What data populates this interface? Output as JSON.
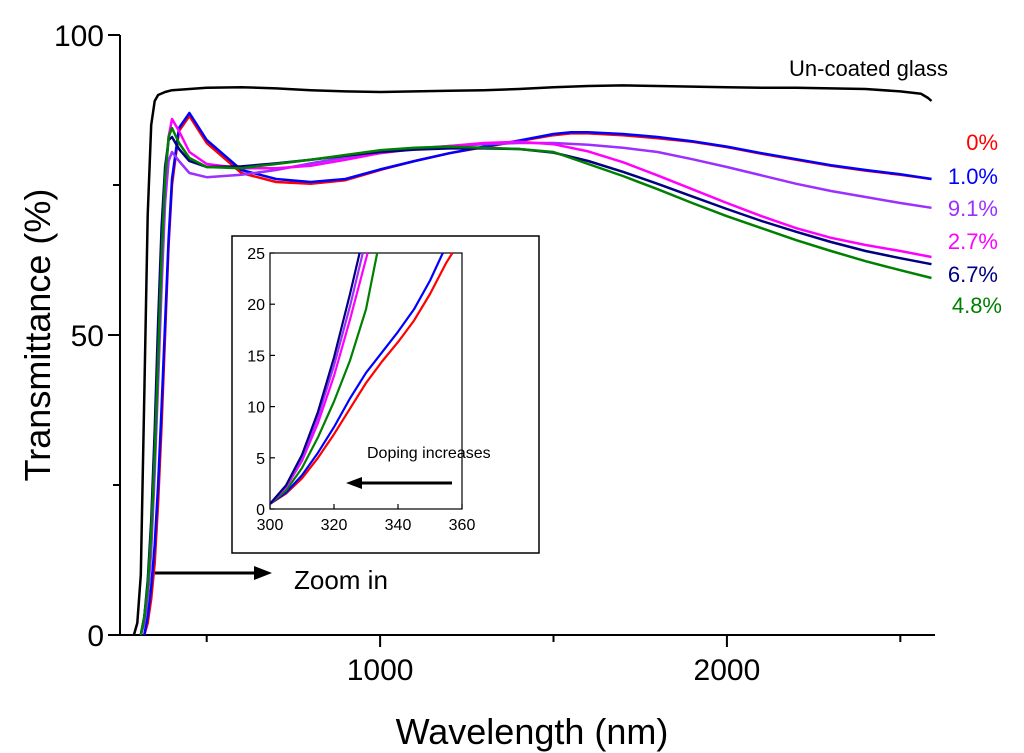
{
  "chart_data": [
    {
      "type": "line",
      "xlabel": "Wavelength (nm)",
      "ylabel": "Transmittance (%)",
      "xlim": [
        250,
        2600
      ],
      "ylim": [
        0,
        100
      ],
      "x_ticks": [
        1000,
        2000
      ],
      "x_tick_labels": [
        "1000",
        "2000"
      ],
      "x_minor_ticks": [
        500,
        1500,
        2500
      ],
      "y_ticks": [
        0,
        50,
        100
      ],
      "y_tick_labels": [
        "0",
        "50",
        "100"
      ],
      "y_minor_ticks": [
        25,
        75
      ],
      "grid": false,
      "legend": "labels at right end of each curve",
      "annotations": [
        {
          "text": "Zoom in",
          "arrow": "points right",
          "color": "#000000"
        }
      ],
      "series": [
        {
          "name": "Un-coated glass",
          "color": "#000000",
          "x": [
            290,
            300,
            310,
            320,
            330,
            340,
            350,
            360,
            380,
            400,
            450,
            500,
            600,
            700,
            800,
            900,
            1000,
            1100,
            1200,
            1300,
            1400,
            1500,
            1600,
            1700,
            1800,
            1900,
            2000,
            2100,
            2200,
            2300,
            2400,
            2500,
            2560,
            2580,
            2590
          ],
          "y": [
            0,
            2,
            10,
            40,
            70,
            85,
            89,
            90,
            90.5,
            90.8,
            91,
            91.2,
            91.3,
            91.1,
            90.8,
            90.6,
            90.5,
            90.6,
            90.7,
            90.8,
            91,
            91.3,
            91.5,
            91.6,
            91.5,
            91.4,
            91.3,
            91.2,
            91.2,
            91.1,
            91,
            90.6,
            90.2,
            89.5,
            89
          ]
        },
        {
          "name": "0%",
          "color": "#ff0000",
          "x": [
            320,
            330,
            340,
            350,
            360,
            370,
            380,
            390,
            400,
            420,
            450,
            500,
            600,
            700,
            800,
            900,
            1000,
            1100,
            1200,
            1300,
            1400,
            1500,
            1550,
            1600,
            1700,
            1800,
            1900,
            2000,
            2100,
            2200,
            2300,
            2400,
            2500,
            2590
          ],
          "y": [
            0,
            2,
            6,
            12,
            22,
            35,
            50,
            65,
            75,
            84,
            86.5,
            82,
            77,
            75.5,
            75.2,
            75.8,
            77.5,
            79,
            80.3,
            81.3,
            82.3,
            83.3,
            83.6,
            83.6,
            83.3,
            82.8,
            82.2,
            81.3,
            80.2,
            79.2,
            78.2,
            77.4,
            76.7,
            76
          ]
        },
        {
          "name": "1.0%",
          "color": "#0000ff",
          "x": [
            320,
            330,
            340,
            350,
            360,
            370,
            380,
            390,
            400,
            420,
            450,
            500,
            600,
            700,
            800,
            900,
            1000,
            1100,
            1200,
            1300,
            1400,
            1500,
            1550,
            1600,
            1700,
            1800,
            1900,
            2000,
            2100,
            2200,
            2300,
            2400,
            2500,
            2590
          ],
          "y": [
            0,
            3,
            8,
            15,
            25,
            38,
            52,
            66,
            76,
            84.5,
            87,
            82.5,
            77.5,
            76,
            75.5,
            76,
            77.6,
            79,
            80.3,
            81.4,
            82.4,
            83.5,
            83.8,
            83.8,
            83.5,
            83,
            82.3,
            81.4,
            80.3,
            79.3,
            78.3,
            77.5,
            76.8,
            76
          ]
        },
        {
          "name": "9.1%",
          "color": "#9b30ff",
          "x": [
            310,
            320,
            330,
            340,
            350,
            360,
            370,
            380,
            390,
            400,
            420,
            450,
            500,
            600,
            700,
            800,
            900,
            1000,
            1100,
            1200,
            1300,
            1400,
            1500,
            1600,
            1700,
            1800,
            1900,
            2000,
            2100,
            2200,
            2300,
            2400,
            2500,
            2590
          ],
          "y": [
            0,
            2,
            6,
            14,
            27,
            42,
            58,
            72,
            79,
            80.5,
            79,
            77,
            76.3,
            76.7,
            77.5,
            78.6,
            79.6,
            80.5,
            81.1,
            81.5,
            81.8,
            82,
            82,
            81.7,
            81.2,
            80.5,
            79.3,
            78,
            76.6,
            75.2,
            74,
            73,
            72,
            71.2
          ]
        },
        {
          "name": "2.7%",
          "color": "#ff00ff",
          "x": [
            310,
            320,
            330,
            340,
            350,
            360,
            370,
            380,
            390,
            400,
            420,
            450,
            500,
            600,
            700,
            800,
            900,
            1000,
            1100,
            1200,
            1300,
            1400,
            1500,
            1600,
            1700,
            1800,
            1900,
            2000,
            2100,
            2200,
            2300,
            2400,
            2500,
            2590
          ],
          "y": [
            0,
            3,
            8,
            17,
            30,
            46,
            62,
            75,
            83,
            86,
            84,
            80.5,
            78.5,
            77.8,
            77.8,
            78.2,
            79.2,
            80.3,
            81,
            81.5,
            82,
            82.2,
            81.8,
            80.6,
            78.8,
            76.6,
            74.3,
            72,
            69.8,
            67.8,
            66.2,
            65,
            64,
            63
          ]
        },
        {
          "name": "6.7%",
          "color": "#000080",
          "x": [
            310,
            320,
            330,
            340,
            350,
            360,
            370,
            380,
            390,
            400,
            420,
            450,
            500,
            600,
            700,
            800,
            900,
            1000,
            1100,
            1200,
            1300,
            1400,
            1500,
            1600,
            1700,
            1800,
            1900,
            2000,
            2100,
            2200,
            2300,
            2400,
            2500,
            2590
          ],
          "y": [
            0,
            3,
            9,
            19,
            34,
            52,
            68,
            78,
            82.5,
            83,
            81,
            79,
            78,
            78.1,
            78.6,
            79.2,
            79.9,
            80.5,
            80.9,
            81.1,
            81.1,
            81,
            80.4,
            79,
            77.2,
            75.2,
            73.1,
            71,
            69,
            67.2,
            65.5,
            64,
            62.8,
            61.8
          ]
        },
        {
          "name": "4.8%",
          "color": "#008000",
          "x": [
            310,
            320,
            330,
            340,
            350,
            360,
            370,
            380,
            390,
            400,
            420,
            450,
            500,
            600,
            700,
            800,
            900,
            1000,
            1100,
            1200,
            1300,
            1400,
            1500,
            1600,
            1700,
            1800,
            1900,
            2000,
            2100,
            2200,
            2300,
            2400,
            2500,
            2590
          ],
          "y": [
            0,
            3,
            8,
            17,
            30,
            46,
            63,
            76,
            83,
            84.5,
            82,
            79.5,
            78,
            77.8,
            78.5,
            79.2,
            80,
            80.8,
            81.2,
            81.4,
            81.2,
            81,
            80.5,
            78.5,
            76.5,
            74.3,
            72,
            69.8,
            67.8,
            65.8,
            64,
            62.3,
            60.8,
            59.5
          ]
        }
      ]
    },
    {
      "type": "line",
      "xlabel": "",
      "ylabel": "",
      "xlim": [
        300,
        360
      ],
      "ylim": [
        0,
        25
      ],
      "x_ticks": [
        300,
        320,
        340,
        360
      ],
      "x_tick_labels": [
        "300",
        "320",
        "340",
        "360"
      ],
      "y_ticks": [
        0,
        5,
        10,
        15,
        20,
        25
      ],
      "y_tick_labels": [
        "0",
        "5",
        "10",
        "15",
        "20",
        "25"
      ],
      "grid": false,
      "annotations": [
        {
          "text": "Doping increases",
          "arrow": "points left",
          "color": "#000000"
        }
      ],
      "series": [
        {
          "color": "#ff0000",
          "x": [
            300,
            305,
            310,
            315,
            320,
            325,
            330,
            335,
            340,
            345,
            350,
            355,
            357
          ],
          "y": [
            0.5,
            1.5,
            3,
            5,
            7.3,
            9.8,
            12.3,
            14.4,
            16.3,
            18.4,
            21,
            24,
            25
          ]
        },
        {
          "color": "#0000ff",
          "x": [
            300,
            305,
            310,
            315,
            320,
            325,
            330,
            335,
            340,
            345,
            350,
            354
          ],
          "y": [
            0.5,
            1.6,
            3.3,
            5.5,
            8,
            10.8,
            13.3,
            15.3,
            17.3,
            19.5,
            22.3,
            25
          ]
        },
        {
          "color": "#008000",
          "x": [
            300,
            305,
            310,
            315,
            320,
            325,
            330,
            333.5
          ],
          "y": [
            0.5,
            1.8,
            4,
            7,
            10.5,
            14.5,
            19.5,
            25
          ]
        },
        {
          "color": "#ff00ff",
          "x": [
            300,
            305,
            310,
            315,
            320,
            325,
            330.5
          ],
          "y": [
            0.5,
            2.1,
            4.7,
            8.4,
            13,
            18.5,
            25
          ]
        },
        {
          "color": "#9b30ff",
          "x": [
            300,
            305,
            310,
            315,
            320,
            325,
            329
          ],
          "y": [
            0.5,
            2.2,
            5,
            9,
            14,
            19.8,
            25
          ]
        },
        {
          "color": "#000080",
          "x": [
            300,
            305,
            310,
            315,
            320,
            325,
            328
          ],
          "y": [
            0.5,
            2.3,
            5.3,
            9.5,
            14.8,
            21,
            25
          ]
        }
      ]
    }
  ]
}
